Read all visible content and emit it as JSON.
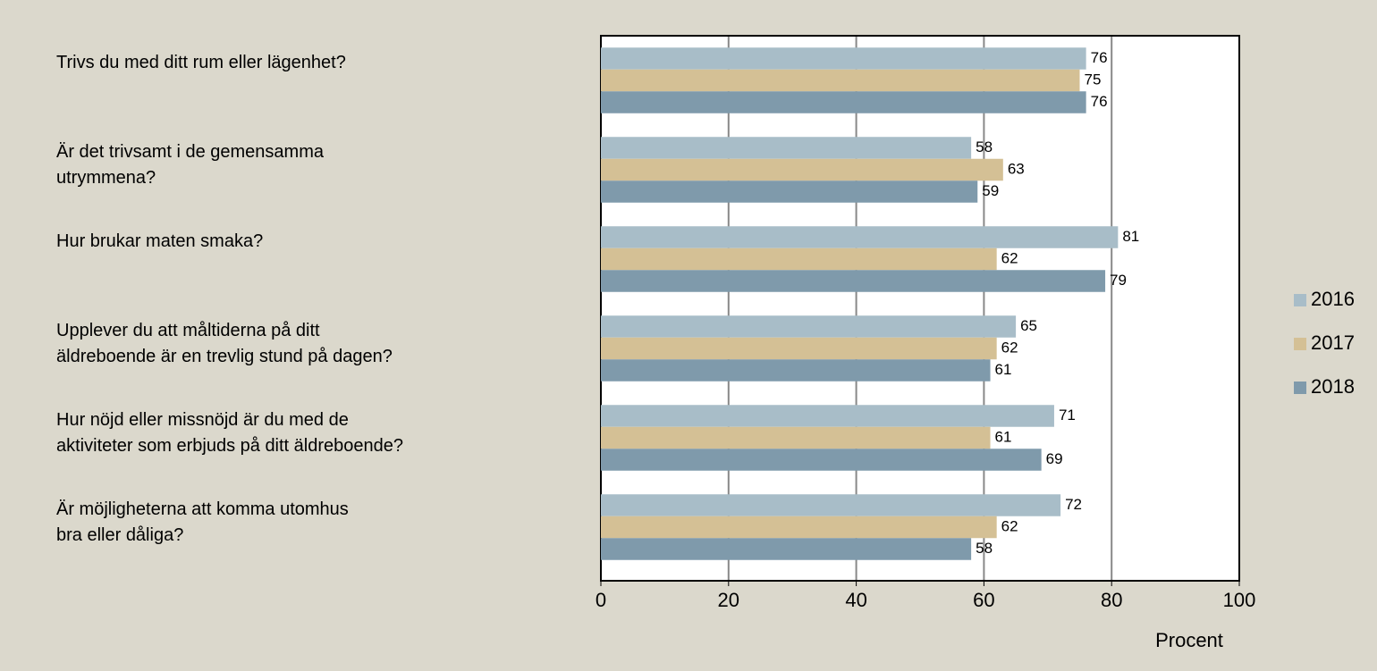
{
  "chart_data": {
    "type": "bar",
    "orientation": "horizontal",
    "categories": [
      "Trivs du med ditt rum eller lägenhet?",
      "Är det trivsamt i de gemensamma\nutrymmena?",
      "Hur brukar maten smaka?",
      "Upplever du att måltiderna på ditt\näldreboende är en trevlig stund på dagen?",
      "Hur nöjd eller missnöjd är du med de\naktiviteter som erbjuds på ditt äldreboende?",
      "Är möjligheterna att komma utomhus\nbra eller dåliga?"
    ],
    "series": [
      {
        "name": "2016",
        "color": "#a8bdc8",
        "values": [
          76,
          58,
          81,
          65,
          71,
          72
        ]
      },
      {
        "name": "2017",
        "color": "#d4c095",
        "values": [
          75,
          63,
          62,
          62,
          61,
          62
        ]
      },
      {
        "name": "2018",
        "color": "#7f9aab",
        "values": [
          76,
          59,
          79,
          61,
          69,
          58
        ]
      }
    ],
    "x_label": "Procent",
    "xlim": [
      0,
      100
    ],
    "xticks": [
      0,
      20,
      40,
      60,
      80,
      100
    ],
    "grid": true,
    "legend": "right"
  }
}
